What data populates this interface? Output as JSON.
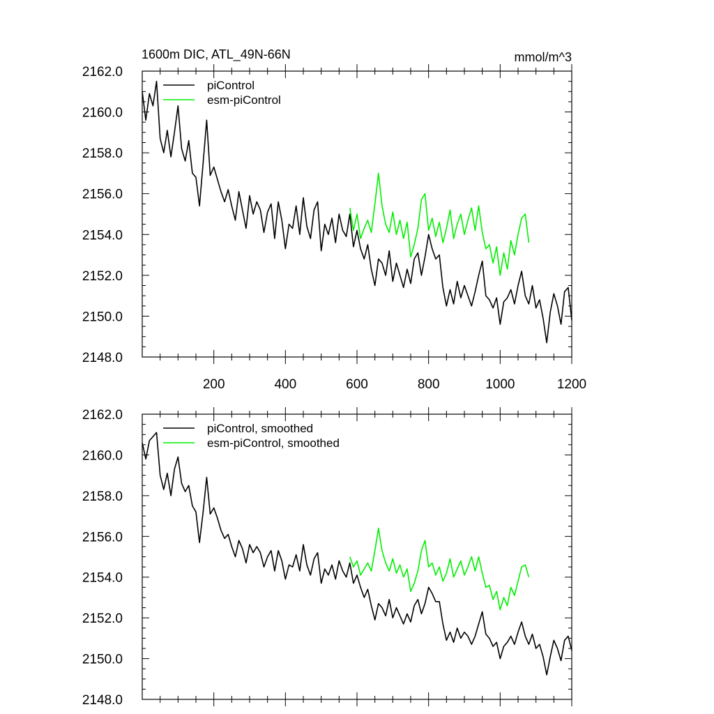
{
  "chart_data": [
    {
      "type": "line",
      "title": "1600m DIC, ATL_49N-66N",
      "units": "mmol/m^3",
      "xlim": [
        0,
        1200
      ],
      "ylim": [
        2148.0,
        2162.0
      ],
      "x_ticks": [
        200,
        400,
        600,
        800,
        1000,
        1200
      ],
      "y_ticks": [
        "2148.0",
        "2150.0",
        "2152.0",
        "2154.0",
        "2156.0",
        "2158.0",
        "2160.0",
        "2162.0"
      ],
      "series": [
        {
          "name": "piControl",
          "color": "#000000",
          "x": [
            0,
            10,
            20,
            30,
            40,
            50,
            60,
            70,
            80,
            90,
            100,
            110,
            120,
            130,
            140,
            150,
            160,
            170,
            180,
            190,
            200,
            210,
            220,
            230,
            240,
            250,
            260,
            270,
            280,
            290,
            300,
            310,
            320,
            330,
            340,
            350,
            360,
            370,
            380,
            390,
            400,
            410,
            420,
            430,
            440,
            450,
            460,
            470,
            480,
            490,
            500,
            510,
            520,
            530,
            540,
            550,
            560,
            570,
            580,
            590,
            600,
            610,
            620,
            630,
            640,
            650,
            660,
            670,
            680,
            690,
            700,
            710,
            720,
            730,
            740,
            750,
            760,
            770,
            780,
            790,
            800,
            810,
            820,
            830,
            840,
            850,
            860,
            870,
            880,
            890,
            900,
            910,
            920,
            930,
            940,
            950,
            960,
            970,
            980,
            990,
            1000,
            1010,
            1020,
            1030,
            1040,
            1050,
            1060,
            1070,
            1080,
            1090,
            1100,
            1110,
            1120,
            1130,
            1140,
            1150,
            1160,
            1170,
            1180,
            1190,
            1200
          ],
          "values": [
            2161.0,
            2159.6,
            2160.9,
            2160.3,
            2161.5,
            2158.7,
            2158.0,
            2159.1,
            2157.8,
            2159.0,
            2160.3,
            2158.2,
            2157.6,
            2158.6,
            2157.0,
            2156.8,
            2155.4,
            2157.5,
            2159.6,
            2156.9,
            2157.3,
            2156.7,
            2156.1,
            2155.6,
            2156.2,
            2155.4,
            2154.7,
            2156.1,
            2155.2,
            2154.3,
            2155.9,
            2155.0,
            2155.6,
            2155.2,
            2154.1,
            2155.1,
            2155.5,
            2153.8,
            2155.6,
            2154.7,
            2153.3,
            2154.5,
            2154.3,
            2155.4,
            2154.0,
            2155.8,
            2154.4,
            2153.8,
            2155.2,
            2155.6,
            2153.2,
            2154.5,
            2154.0,
            2154.8,
            2153.6,
            2155.0,
            2154.2,
            2153.9,
            2155.0,
            2153.4,
            2154.2,
            2153.3,
            2152.8,
            2153.5,
            2152.3,
            2151.5,
            2152.8,
            2152.6,
            2152.0,
            2153.2,
            2151.7,
            2152.6,
            2152.0,
            2151.4,
            2152.3,
            2151.6,
            2152.8,
            2153.1,
            2152.0,
            2152.9,
            2154.0,
            2153.3,
            2152.8,
            2153.0,
            2151.4,
            2150.5,
            2151.3,
            2150.6,
            2151.7,
            2150.9,
            2151.5,
            2151.0,
            2150.5,
            2151.2,
            2152.0,
            2152.7,
            2151.0,
            2150.8,
            2150.4,
            2150.9,
            2149.6,
            2150.7,
            2150.9,
            2151.3,
            2150.6,
            2151.5,
            2152.2,
            2151.0,
            2150.6,
            2151.5,
            2150.4,
            2150.8,
            2149.9,
            2148.7,
            2150.2,
            2151.1,
            2150.5,
            2149.6,
            2151.2,
            2151.4,
            2149.8
          ]
        },
        {
          "name": "esm-piControl",
          "color": "#00ee00",
          "x": [
            580,
            590,
            600,
            610,
            620,
            630,
            640,
            650,
            660,
            670,
            680,
            690,
            700,
            710,
            720,
            730,
            740,
            750,
            760,
            770,
            780,
            790,
            800,
            810,
            820,
            830,
            840,
            850,
            860,
            870,
            880,
            890,
            900,
            910,
            920,
            930,
            940,
            950,
            960,
            970,
            980,
            990,
            1000,
            1010,
            1020,
            1030,
            1040,
            1050,
            1060,
            1070,
            1080
          ],
          "values": [
            2155.3,
            2154.2,
            2155.0,
            2153.8,
            2154.3,
            2154.7,
            2154.1,
            2155.5,
            2157.0,
            2155.4,
            2154.5,
            2154.1,
            2155.1,
            2154.0,
            2154.7,
            2153.8,
            2154.6,
            2152.9,
            2153.5,
            2154.3,
            2155.7,
            2156.0,
            2154.2,
            2154.8,
            2153.9,
            2154.6,
            2153.6,
            2154.3,
            2155.2,
            2153.8,
            2154.5,
            2155.0,
            2154.0,
            2154.7,
            2155.3,
            2154.2,
            2155.4,
            2154.1,
            2153.3,
            2153.5,
            2152.6,
            2153.4,
            2152.0,
            2153.1,
            2152.3,
            2153.7,
            2153.0,
            2154.0,
            2154.8,
            2155.0,
            2153.6
          ]
        }
      ]
    },
    {
      "type": "line",
      "title": "",
      "xlim": [
        0,
        1200
      ],
      "ylim": [
        2148.0,
        2162.0
      ],
      "y_ticks": [
        "2148.0",
        "2150.0",
        "2152.0",
        "2154.0",
        "2156.0",
        "2158.0",
        "2160.0",
        "2162.0"
      ],
      "series": [
        {
          "name": "piControl, smoothed",
          "color": "#000000",
          "x": [
            0,
            10,
            20,
            30,
            40,
            50,
            60,
            70,
            80,
            90,
            100,
            110,
            120,
            130,
            140,
            150,
            160,
            170,
            180,
            190,
            200,
            210,
            220,
            230,
            240,
            250,
            260,
            270,
            280,
            290,
            300,
            310,
            320,
            330,
            340,
            350,
            360,
            370,
            380,
            390,
            400,
            410,
            420,
            430,
            440,
            450,
            460,
            470,
            480,
            490,
            500,
            510,
            520,
            530,
            540,
            550,
            560,
            570,
            580,
            590,
            600,
            610,
            620,
            630,
            640,
            650,
            660,
            670,
            680,
            690,
            700,
            710,
            720,
            730,
            740,
            750,
            760,
            770,
            780,
            790,
            800,
            810,
            820,
            830,
            840,
            850,
            860,
            870,
            880,
            890,
            900,
            910,
            920,
            930,
            940,
            950,
            960,
            970,
            980,
            990,
            1000,
            1010,
            1020,
            1030,
            1040,
            1050,
            1060,
            1070,
            1080,
            1090,
            1100,
            1110,
            1120,
            1130,
            1140,
            1150,
            1160,
            1170,
            1180,
            1190,
            1200
          ],
          "values": [
            2160.6,
            2159.8,
            2160.7,
            2160.9,
            2161.1,
            2159.0,
            2158.3,
            2159.1,
            2158.0,
            2159.3,
            2159.9,
            2158.6,
            2158.2,
            2158.5,
            2157.5,
            2157.2,
            2155.7,
            2157.2,
            2158.9,
            2157.1,
            2157.4,
            2156.9,
            2156.3,
            2155.9,
            2156.1,
            2155.5,
            2155.0,
            2155.8,
            2155.4,
            2154.7,
            2155.6,
            2155.2,
            2155.5,
            2155.2,
            2154.5,
            2155.0,
            2155.3,
            2154.3,
            2155.3,
            2154.8,
            2153.9,
            2154.6,
            2154.5,
            2155.1,
            2154.3,
            2155.6,
            2154.6,
            2154.1,
            2154.9,
            2155.2,
            2153.7,
            2154.4,
            2154.1,
            2154.6,
            2153.9,
            2154.8,
            2154.3,
            2154.0,
            2154.7,
            2153.7,
            2154.1,
            2153.5,
            2153.0,
            2153.4,
            2152.6,
            2151.9,
            2152.7,
            2152.5,
            2152.1,
            2152.9,
            2152.0,
            2152.5,
            2152.1,
            2151.7,
            2152.2,
            2151.8,
            2152.6,
            2152.9,
            2152.2,
            2152.7,
            2153.5,
            2153.2,
            2152.8,
            2152.8,
            2151.7,
            2150.9,
            2151.3,
            2150.8,
            2151.5,
            2151.0,
            2151.3,
            2151.1,
            2150.7,
            2151.1,
            2151.7,
            2152.3,
            2151.2,
            2151.0,
            2150.6,
            2150.8,
            2150.0,
            2150.6,
            2150.8,
            2151.1,
            2150.7,
            2151.3,
            2151.8,
            2151.1,
            2150.7,
            2151.2,
            2150.5,
            2150.7,
            2150.1,
            2149.2,
            2150.1,
            2150.9,
            2150.5,
            2149.9,
            2150.9,
            2151.1,
            2150.4
          ]
        },
        {
          "name": "esm-piControl, smoothed",
          "color": "#00ee00",
          "x": [
            580,
            590,
            600,
            610,
            620,
            630,
            640,
            650,
            660,
            670,
            680,
            690,
            700,
            710,
            720,
            730,
            740,
            750,
            760,
            770,
            780,
            790,
            800,
            810,
            820,
            830,
            840,
            850,
            860,
            870,
            880,
            890,
            900,
            910,
            920,
            930,
            940,
            950,
            960,
            970,
            980,
            990,
            1000,
            1010,
            1020,
            1030,
            1040,
            1050,
            1060,
            1070,
            1080
          ],
          "values": [
            2155.0,
            2154.5,
            2154.8,
            2154.1,
            2154.4,
            2154.7,
            2154.3,
            2155.3,
            2156.4,
            2155.3,
            2154.7,
            2154.3,
            2154.9,
            2154.2,
            2154.6,
            2154.0,
            2154.4,
            2153.3,
            2153.7,
            2154.3,
            2155.3,
            2155.8,
            2154.5,
            2154.7,
            2154.1,
            2154.5,
            2153.8,
            2154.2,
            2154.9,
            2154.0,
            2154.4,
            2154.8,
            2154.1,
            2154.5,
            2155.0,
            2154.3,
            2155.0,
            2154.2,
            2153.5,
            2153.6,
            2152.9,
            2153.3,
            2152.4,
            2153.0,
            2152.6,
            2153.5,
            2153.1,
            2153.8,
            2154.5,
            2154.6,
            2154.0
          ]
        }
      ]
    }
  ]
}
